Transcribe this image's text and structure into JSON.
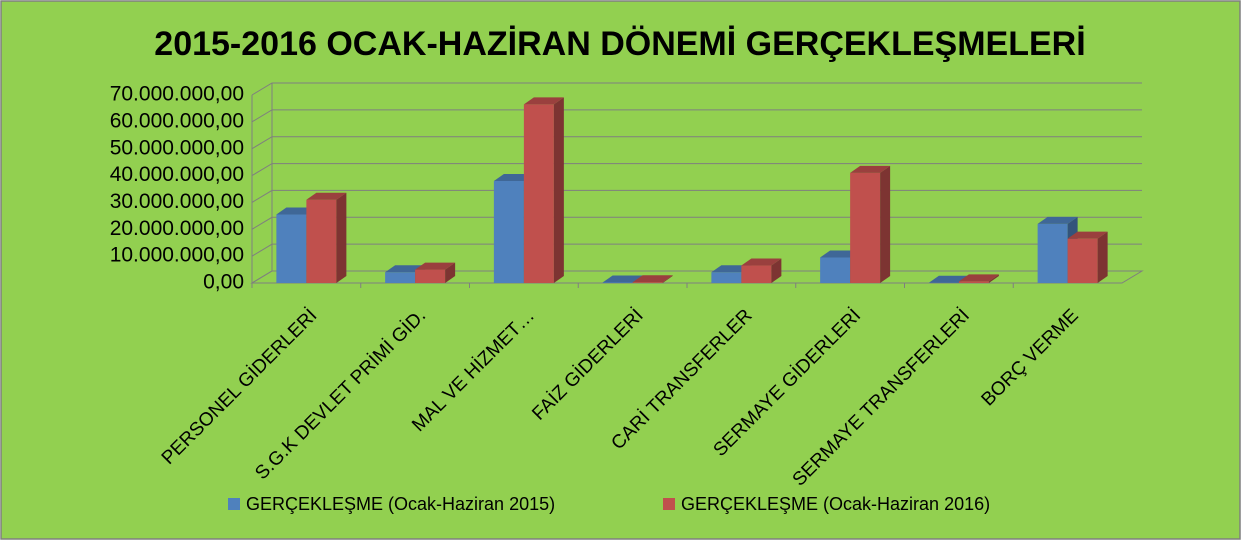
{
  "chart_data": {
    "type": "bar3d",
    "title": "2015-2016 OCAK-HAZİRAN  DÖNEMİ GERÇEKLEŞMELERİ",
    "categories": [
      "PERSONEL GİDERLERİ",
      "S.G.K DEVLET PRİMİ GİD.",
      "MAL VE HİZMET…",
      "FAİZ GİDERLERİ",
      "CARİ TRANSFERLER",
      "SERMAYE GİDERLERİ",
      "SERMAYE TRANSFERLERİ",
      "BORÇ VERME"
    ],
    "series": [
      {
        "name": "GERÇEKLEŞME (Ocak-Haziran 2015)",
        "color": "#4f81bd",
        "values": [
          25500000,
          4000000,
          38000000,
          200000,
          4000000,
          9500000,
          100000,
          22000000
        ]
      },
      {
        "name": "GERÇEKLEŞME (Ocak-Haziran 2016)",
        "color": "#c0504d",
        "values": [
          31000000,
          5000000,
          66500000,
          300000,
          6500000,
          41000000,
          600000,
          16500000
        ]
      }
    ],
    "ylim": [
      0,
      70000000
    ],
    "yticks": [
      {
        "value": 0,
        "label": "0,00"
      },
      {
        "value": 10000000,
        "label": "10.000.000,00"
      },
      {
        "value": 20000000,
        "label": "20.000.000,00"
      },
      {
        "value": 30000000,
        "label": "30.000.000,00"
      },
      {
        "value": 40000000,
        "label": "40.000.000,00"
      },
      {
        "value": 50000000,
        "label": "50.000.000,00"
      },
      {
        "value": 60000000,
        "label": "60.000.000,00"
      },
      {
        "value": 70000000,
        "label": "70.000.000,00"
      }
    ],
    "grid": true,
    "legend": "bottom"
  }
}
